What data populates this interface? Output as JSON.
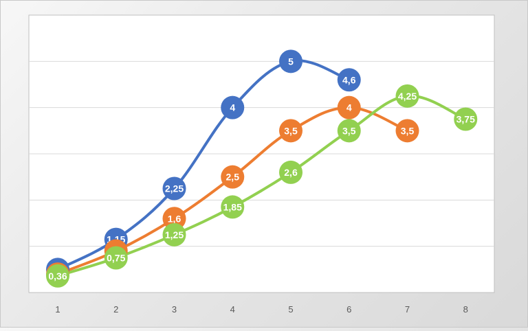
{
  "chart_data": {
    "type": "line",
    "title": "",
    "xlabel": "",
    "ylabel": "",
    "x": [
      1,
      2,
      3,
      4,
      5,
      6,
      7,
      8
    ],
    "ylim": [
      0,
      5
    ],
    "grid": true,
    "legend": "none",
    "series": [
      {
        "color": "#4472C4",
        "x": [
          1,
          2,
          3,
          4,
          5,
          6
        ],
        "values": [
          0.5,
          1.15,
          2.25,
          4,
          5,
          4.6
        ],
        "labels": [
          "0,5",
          "1,15",
          "2,25",
          "4",
          "5",
          "4,6"
        ]
      },
      {
        "color": "#ED7D31",
        "x": [
          1,
          2,
          3,
          4,
          5,
          6,
          7
        ],
        "values": [
          0.4,
          0.9,
          1.6,
          2.5,
          3.5,
          4,
          3.5
        ],
        "labels": [
          "0,4",
          "0,9",
          "1,6",
          "2,5",
          "3,5",
          "4",
          "3,5"
        ]
      },
      {
        "color": "#92D050",
        "x": [
          1,
          2,
          3,
          4,
          5,
          6,
          7,
          8
        ],
        "values": [
          0.36,
          0.75,
          1.25,
          1.85,
          2.6,
          3.5,
          4.25,
          3.75
        ],
        "labels": [
          "0,36",
          "0,75",
          "1,25",
          "1,85",
          "2,6",
          "3,5",
          "4,25",
          "3,75"
        ]
      }
    ]
  }
}
